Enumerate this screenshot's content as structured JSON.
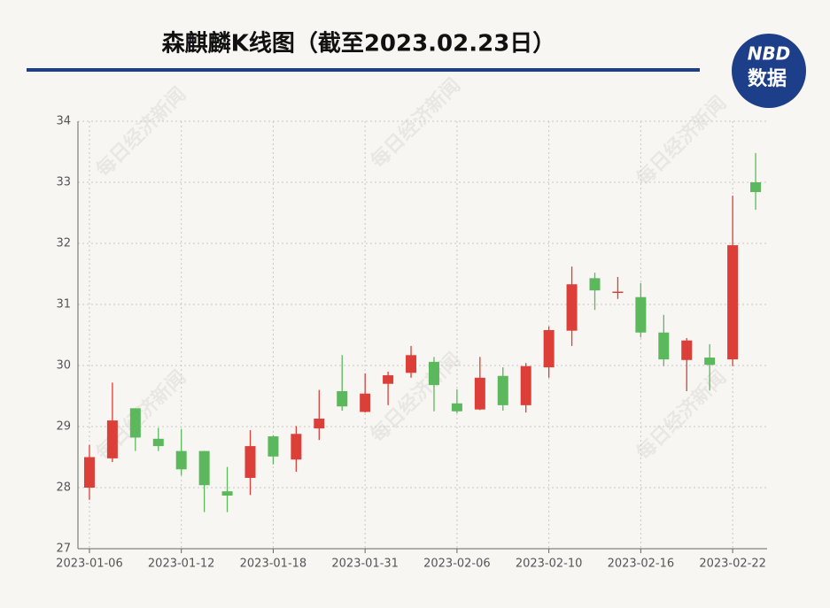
{
  "chart_data": {
    "type": "candlestick",
    "title": "森麒麟K线图（截至2023.02.23日）",
    "logo": {
      "top": "NBD",
      "bottom": "数据"
    },
    "watermark": "每日经济新闻",
    "categories": [
      "2023-01-06",
      null,
      null,
      null,
      "2023-01-12",
      null,
      null,
      null,
      "2023-01-18",
      null,
      null,
      null,
      "2023-01-31",
      null,
      null,
      null,
      "2023-02-06",
      null,
      null,
      null,
      "2023-02-10",
      null,
      null,
      null,
      "2023-02-16",
      null,
      null,
      null,
      "2023-02-22",
      null
    ],
    "open": [
      28.0,
      28.48,
      29.3,
      28.8,
      28.6,
      28.6,
      27.94,
      28.16,
      28.84,
      28.46,
      28.97,
      29.58,
      29.24,
      29.7,
      29.88,
      30.06,
      29.38,
      29.28,
      29.83,
      29.35,
      29.97,
      30.57,
      31.43,
      31.19,
      31.12,
      30.54,
      30.09,
      30.13,
      30.1,
      33.0
    ],
    "high": [
      28.7,
      29.72,
      29.3,
      28.98,
      28.96,
      28.6,
      28.34,
      28.94,
      28.86,
      29.01,
      29.6,
      30.17,
      29.87,
      29.9,
      30.32,
      30.14,
      29.61,
      30.14,
      29.97,
      30.04,
      30.64,
      31.62,
      31.52,
      31.45,
      31.35,
      30.83,
      30.45,
      30.35,
      32.78,
      33.48
    ],
    "low": [
      27.8,
      28.42,
      28.6,
      28.6,
      28.2,
      27.6,
      27.6,
      27.88,
      28.38,
      28.26,
      28.78,
      29.26,
      29.23,
      29.35,
      29.8,
      29.25,
      29.22,
      29.27,
      29.26,
      29.23,
      29.8,
      30.32,
      30.91,
      31.09,
      30.46,
      29.99,
      29.58,
      29.59,
      29.99,
      32.55
    ],
    "close": [
      28.5,
      29.1,
      28.82,
      28.68,
      28.3,
      28.04,
      27.87,
      28.68,
      28.51,
      28.88,
      29.13,
      29.33,
      29.54,
      29.84,
      30.17,
      29.68,
      29.25,
      29.8,
      29.35,
      29.99,
      30.58,
      31.33,
      31.23,
      31.21,
      30.54,
      30.1,
      30.41,
      30.01,
      31.97,
      32.84
    ],
    "up_color": "#dc3f37",
    "down_color": "#5cb85c",
    "ylim": [
      27,
      34
    ],
    "yticks": [
      27,
      28,
      29,
      30,
      31,
      32,
      33,
      34
    ],
    "grid": true
  }
}
